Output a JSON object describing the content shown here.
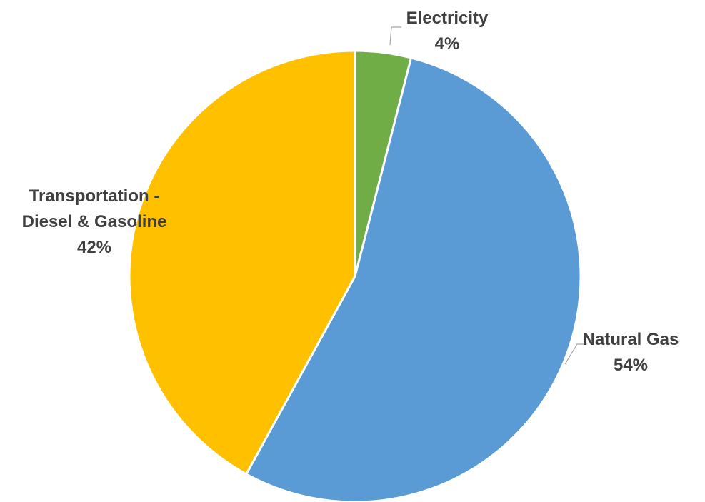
{
  "chart_data": {
    "type": "pie",
    "title": "",
    "slices": [
      {
        "label": "Electricity",
        "lines": [
          "Electricity"
        ],
        "value": 4,
        "percent_label": "4%",
        "color": "#70ad47"
      },
      {
        "label": "Natural Gas",
        "lines": [
          "Natural Gas"
        ],
        "value": 54,
        "percent_label": "54%",
        "color": "#5b9bd5"
      },
      {
        "label": "Transportation - Diesel & Gasoline",
        "lines": [
          "Transportation -",
          "Diesel & Gasoline"
        ],
        "value": 42,
        "percent_label": "42%",
        "color": "#ffc000"
      }
    ],
    "start_angle_deg": 0,
    "direction": "clockwise",
    "legend": "none",
    "data_labels": "outside with leader lines"
  }
}
